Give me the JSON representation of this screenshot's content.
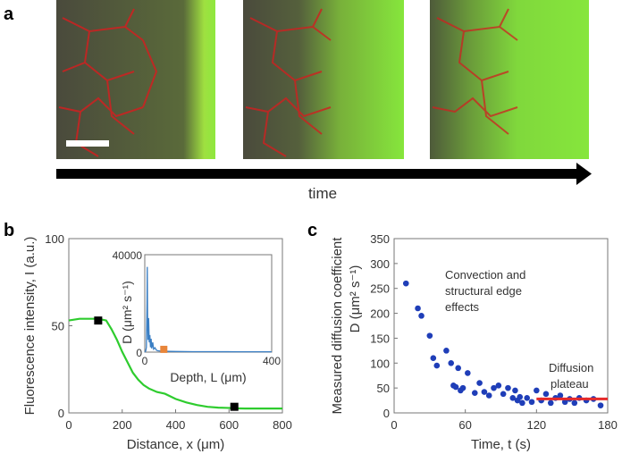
{
  "panels": {
    "a": {
      "letter": "a",
      "axis_label": "time"
    },
    "b": {
      "letter": "b"
    },
    "c": {
      "letter": "c"
    }
  },
  "chart_data": [
    {
      "id": "b-main",
      "type": "line",
      "xlabel": "Distance, x (μm)",
      "ylabel": "Fluorescence intensity, I (a.u.)",
      "xlim": [
        0,
        800
      ],
      "ylim": [
        0,
        100
      ],
      "xticks": [
        "0",
        "200",
        "400",
        "600",
        "800"
      ],
      "yticks": [
        "0",
        "50",
        "100"
      ],
      "line_color": "#2ecc2e",
      "series": [
        {
          "name": "intensity profile",
          "x": [
            0,
            40,
            80,
            110,
            140,
            160,
            180,
            200,
            220,
            240,
            260,
            280,
            300,
            330,
            360,
            400,
            440,
            480,
            520,
            560,
            600,
            620,
            660,
            700,
            750,
            800
          ],
          "y": [
            53,
            54,
            54,
            54,
            53,
            48,
            42,
            35,
            29,
            23,
            19,
            16,
            14,
            12,
            11,
            8,
            6,
            4.5,
            3.5,
            3,
            2.8,
            2.6,
            2.5,
            2.5,
            2.5,
            2.5
          ]
        }
      ],
      "markers": {
        "x": [
          110,
          620
        ],
        "y": [
          53,
          3.5
        ],
        "color": "#000000"
      }
    },
    {
      "id": "b-inset",
      "type": "line",
      "xlabel": "Depth, L (μm)",
      "ylabel": "D (μm² s⁻¹)",
      "xlim": [
        0,
        400
      ],
      "ylim": [
        0,
        40000
      ],
      "xtick_labels": [
        "0",
        "400"
      ],
      "ytick_labels": [
        "0",
        "40000"
      ],
      "line_color": "#3b7fc4",
      "series": [
        {
          "name": "D vs depth",
          "x": [
            0,
            3,
            5,
            7,
            8,
            9,
            10,
            12,
            14,
            16,
            18,
            20,
            22,
            25,
            28,
            32,
            36,
            40,
            50,
            60,
            80,
            100,
            150,
            200,
            300,
            400
          ],
          "y": [
            0,
            500,
            2000,
            20000,
            35000,
            12000,
            5000,
            14000,
            4000,
            7000,
            2000,
            5500,
            1500,
            4000,
            1200,
            1800,
            900,
            600,
            400,
            350,
            300,
            250,
            200,
            180,
            150,
            150
          ]
        }
      ],
      "marker": {
        "x": [
          60
        ],
        "y": [
          400
        ],
        "color": "#e8853a"
      }
    },
    {
      "id": "c",
      "type": "scatter",
      "xlabel": "Time, t (s)",
      "ylabel": "Measured diffusion coefficient",
      "ylabel2": "D (μm² s⁻¹)",
      "xlim": [
        0,
        180
      ],
      "ylim": [
        0,
        350
      ],
      "xticks": [
        "0",
        "60",
        "120",
        "180"
      ],
      "yticks": [
        "0",
        "50",
        "100",
        "150",
        "200",
        "250",
        "300",
        "350"
      ],
      "point_color": "#1f3eb8",
      "points": {
        "x": [
          10,
          20,
          23,
          30,
          33,
          36,
          44,
          48,
          50,
          52,
          54,
          56,
          58,
          62,
          68,
          72,
          76,
          80,
          84,
          88,
          92,
          96,
          100,
          102,
          104,
          106,
          108,
          112,
          116,
          120,
          124,
          128,
          132,
          136,
          140,
          144,
          148,
          152,
          156,
          162,
          168,
          174
        ],
        "y": [
          260,
          210,
          195,
          155,
          110,
          95,
          125,
          100,
          55,
          52,
          90,
          45,
          50,
          80,
          40,
          60,
          42,
          35,
          50,
          55,
          38,
          50,
          30,
          45,
          25,
          32,
          20,
          30,
          22,
          45,
          25,
          38,
          20,
          30,
          35,
          22,
          28,
          20,
          30,
          25,
          28,
          15
        ]
      },
      "fit_line": {
        "x": [
          120,
          180
        ],
        "y": [
          28,
          28
        ],
        "color": "#e62a2a",
        "label": "Diffusion plateau"
      },
      "annotations": [
        "Convection and",
        "structural edge",
        "effects",
        "Diffusion",
        "plateau"
      ]
    }
  ]
}
